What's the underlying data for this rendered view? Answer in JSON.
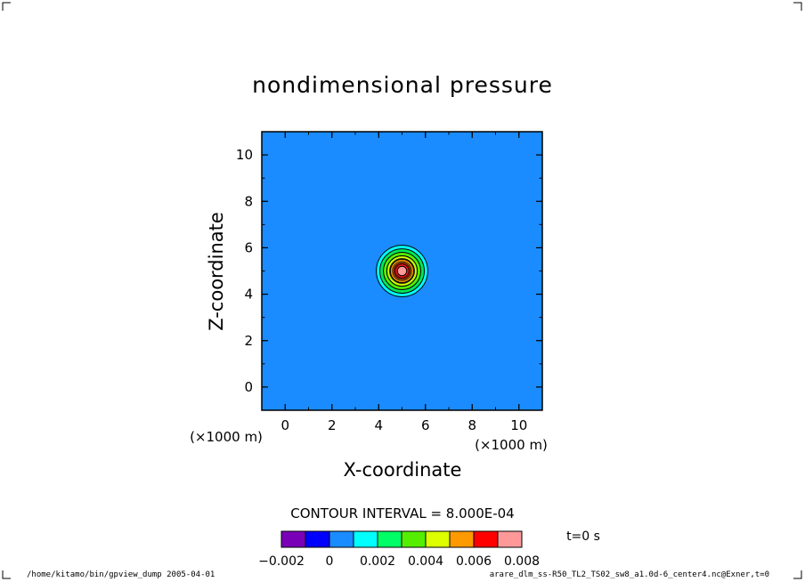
{
  "title": "nondimensional pressure",
  "chart_data": {
    "type": "contour",
    "title": "nondimensional pressure",
    "xlabel": "X-coordinate",
    "ylabel": "Z-coordinate",
    "x_unit": "(×1000 m)",
    "y_unit": "(×1000 m)",
    "xlim": [
      -1,
      11
    ],
    "ylim": [
      -1,
      11
    ],
    "x_ticks": [
      0,
      2,
      4,
      6,
      8,
      10
    ],
    "y_ticks": [
      0,
      2,
      4,
      6,
      8,
      10
    ],
    "center": [
      5,
      5
    ],
    "background_level": 0,
    "contour_interval": 0.0008,
    "contour_interval_label": "CONTOUR INTERVAL = 8.000E-04",
    "rings": [
      {
        "radius": 1.1,
        "color": "#00ffff"
      },
      {
        "radius": 0.95,
        "color": "#00e85a"
      },
      {
        "radius": 0.8,
        "color": "#55ee00"
      },
      {
        "radius": 0.65,
        "color": "#ccff00"
      },
      {
        "radius": 0.5,
        "color": "#ff9900"
      },
      {
        "radius": 0.35,
        "color": "#ff1a1a"
      },
      {
        "radius": 0.2,
        "color": "#ff9999"
      }
    ]
  },
  "colorbar": {
    "colors": [
      "#7a00b8",
      "#0000ff",
      "#1a8cff",
      "#00ffff",
      "#00ff66",
      "#55ee00",
      "#ddff00",
      "#ff9900",
      "#ff0000",
      "#ff9999"
    ],
    "tick_labels": [
      "−0.002",
      "0",
      "0.002",
      "0.004",
      "0.006",
      "0.008"
    ]
  },
  "time_label": "t=0 s",
  "footer_left": "/home/kitamo/bin/gpview_dump  2005-04-01",
  "footer_right": "arare_dlm_ss-R50_TL2_TS02_sw8_a1.0d-6_center4.nc@Exner,t=0"
}
